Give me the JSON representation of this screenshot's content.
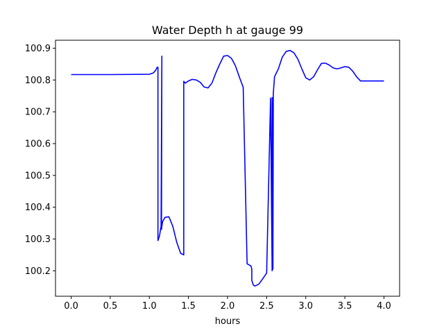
{
  "chart_data": {
    "type": "line",
    "title": "Water Depth h at gauge 99",
    "xlabel": "hours",
    "ylabel": "",
    "xlim": [
      -0.2,
      4.2
    ],
    "ylim": [
      100.12,
      100.925
    ],
    "xticks": [
      0.0,
      0.5,
      1.0,
      1.5,
      2.0,
      2.5,
      3.0,
      3.5,
      4.0
    ],
    "xtick_labels": [
      "0.0",
      "0.5",
      "1.0",
      "1.5",
      "2.0",
      "2.5",
      "3.0",
      "3.5",
      "4.0"
    ],
    "yticks": [
      100.2,
      100.3,
      100.4,
      100.5,
      100.6,
      100.7,
      100.8,
      100.9
    ],
    "ytick_labels": [
      "100.2",
      "100.3",
      "100.4",
      "100.5",
      "100.6",
      "100.7",
      "100.8",
      "100.9"
    ],
    "grid": false,
    "series": [
      {
        "color": "#0000ff",
        "x": [
          0.0,
          0.5,
          1.0,
          1.05,
          1.08,
          1.1,
          1.11,
          1.11,
          1.13,
          1.15,
          1.16,
          1.155,
          1.16,
          1.17,
          1.2,
          1.25,
          1.3,
          1.35,
          1.4,
          1.44,
          1.44,
          1.46,
          1.5,
          1.55,
          1.6,
          1.65,
          1.7,
          1.75,
          1.8,
          1.85,
          1.9,
          1.95,
          2.0,
          2.05,
          2.1,
          2.15,
          2.2,
          2.25,
          2.3,
          2.31,
          2.31,
          2.33,
          2.35,
          2.4,
          2.45,
          2.5,
          2.55,
          2.57,
          2.57,
          2.58,
          2.585,
          2.585,
          2.59,
          2.595,
          2.6,
          2.65,
          2.7,
          2.75,
          2.8,
          2.85,
          2.9,
          2.95,
          3.0,
          3.05,
          3.1,
          3.15,
          3.2,
          3.25,
          3.3,
          3.35,
          3.4,
          3.45,
          3.5,
          3.55,
          3.6,
          3.65,
          3.7,
          3.75,
          3.8,
          3.85,
          3.9,
          3.95,
          4.0
        ],
        "y": [
          100.817,
          100.817,
          100.818,
          100.822,
          100.83,
          100.84,
          100.84,
          100.295,
          100.31,
          100.34,
          100.875,
          100.33,
          100.34,
          100.355,
          100.368,
          100.37,
          100.34,
          100.29,
          100.255,
          100.25,
          100.796,
          100.79,
          100.797,
          100.802,
          100.8,
          100.793,
          100.778,
          100.775,
          100.79,
          100.822,
          100.85,
          100.875,
          100.877,
          100.868,
          100.845,
          100.81,
          100.777,
          100.222,
          100.215,
          100.205,
          100.17,
          100.155,
          100.152,
          100.158,
          100.175,
          100.193,
          100.743,
          100.2,
          100.745,
          100.205,
          100.746,
          100.756,
          100.775,
          100.79,
          100.81,
          100.835,
          100.872,
          100.89,
          100.893,
          100.885,
          100.865,
          100.835,
          100.807,
          100.8,
          100.81,
          100.832,
          100.852,
          100.853,
          100.847,
          100.838,
          100.835,
          100.838,
          100.842,
          100.84,
          100.828,
          100.81,
          100.797,
          100.797,
          100.797,
          100.797,
          100.797,
          100.797,
          100.797
        ]
      }
    ]
  }
}
